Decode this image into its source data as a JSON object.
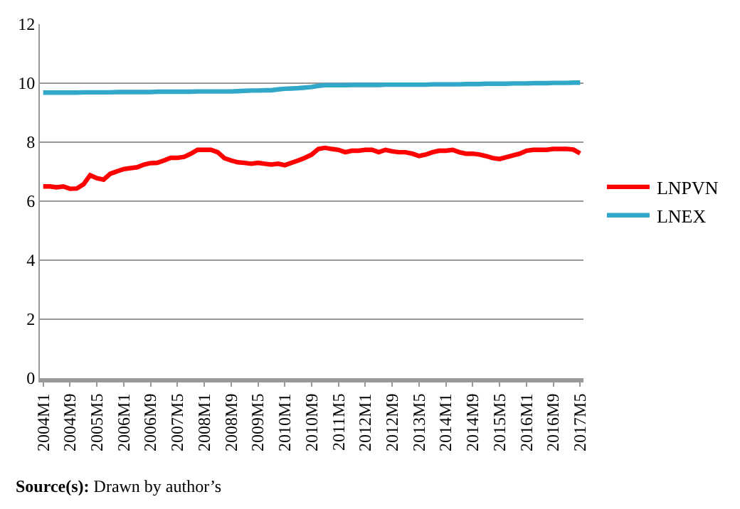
{
  "chart_data": {
    "type": "line",
    "categories": [
      "2004M1",
      null,
      null,
      null,
      "2004M9",
      null,
      null,
      null,
      "2005M5",
      null,
      null,
      null,
      "2006M1",
      null,
      null,
      null,
      "2006M9",
      null,
      null,
      null,
      "2007M5",
      null,
      null,
      null,
      "2008M1",
      null,
      null,
      null,
      "2008M9",
      null,
      null,
      null,
      "2009M5",
      null,
      null,
      null,
      "2010M1",
      null,
      null,
      null,
      "2010M9",
      null,
      null,
      null,
      "2011M5",
      null,
      null,
      null,
      "2012M1",
      null,
      null,
      null,
      "2012M9",
      null,
      null,
      null,
      "2013M5",
      null,
      null,
      null,
      "2014M1",
      null,
      null,
      null,
      "2014M9",
      null,
      null,
      null,
      "2015M5",
      null,
      null,
      null,
      "2016M1",
      null,
      null,
      null,
      "2016M9",
      null,
      null,
      null,
      "2017M5"
    ],
    "series": [
      {
        "name": "LNPVN",
        "color": "#ff0000",
        "values": [
          6.5,
          6.5,
          6.47,
          6.5,
          6.42,
          6.43,
          6.57,
          6.88,
          6.78,
          6.73,
          6.93,
          7.01,
          7.09,
          7.12,
          7.15,
          7.24,
          7.29,
          7.3,
          7.38,
          7.47,
          7.47,
          7.5,
          7.61,
          7.74,
          7.74,
          7.74,
          7.66,
          7.46,
          7.38,
          7.32,
          7.3,
          7.27,
          7.3,
          7.27,
          7.24,
          7.27,
          7.22,
          7.3,
          7.38,
          7.47,
          7.58,
          7.77,
          7.81,
          7.77,
          7.74,
          7.66,
          7.71,
          7.71,
          7.74,
          7.74,
          7.66,
          7.74,
          7.69,
          7.66,
          7.66,
          7.61,
          7.53,
          7.58,
          7.66,
          7.71,
          7.71,
          7.74,
          7.66,
          7.61,
          7.61,
          7.58,
          7.53,
          7.46,
          7.43,
          7.49,
          7.55,
          7.61,
          7.71,
          7.74,
          7.74,
          7.74,
          7.77,
          7.77,
          7.77,
          7.75,
          7.62
        ]
      },
      {
        "name": "LNEX",
        "color": "#31a8c8",
        "values": [
          9.68,
          9.68,
          9.68,
          9.68,
          9.68,
          9.68,
          9.69,
          9.69,
          9.69,
          9.69,
          9.69,
          9.7,
          9.7,
          9.7,
          9.7,
          9.7,
          9.7,
          9.71,
          9.71,
          9.71,
          9.71,
          9.71,
          9.71,
          9.72,
          9.72,
          9.72,
          9.72,
          9.72,
          9.72,
          9.73,
          9.74,
          9.75,
          9.75,
          9.76,
          9.76,
          9.79,
          9.81,
          9.82,
          9.83,
          9.85,
          9.87,
          9.91,
          9.93,
          9.93,
          9.93,
          9.93,
          9.94,
          9.94,
          9.94,
          9.94,
          9.94,
          9.95,
          9.95,
          9.95,
          9.95,
          9.95,
          9.95,
          9.95,
          9.96,
          9.96,
          9.96,
          9.96,
          9.96,
          9.97,
          9.97,
          9.97,
          9.98,
          9.98,
          9.98,
          9.98,
          9.99,
          9.99,
          9.99,
          10.0,
          10.0,
          10.0,
          10.01,
          10.01,
          10.01,
          10.02,
          10.02
        ]
      }
    ],
    "ylim": [
      0,
      12
    ],
    "yticks": [
      0,
      2,
      4,
      6,
      8,
      10,
      12
    ],
    "grid": "y",
    "legend": "right",
    "annotations": [
      "Source(s): Drawn by author’s"
    ]
  }
}
